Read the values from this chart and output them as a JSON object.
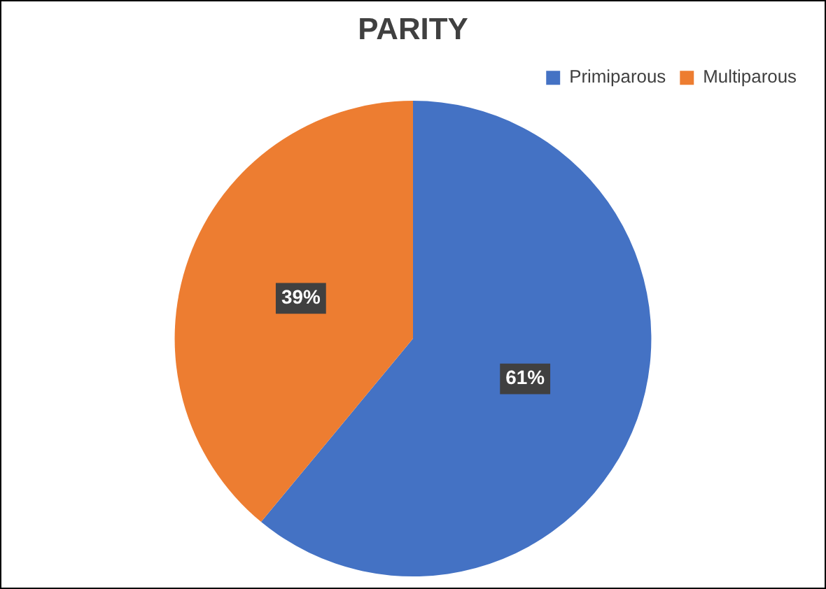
{
  "chart_data": {
    "type": "pie",
    "title": "PARITY",
    "categories": [
      "Primiparous",
      "Multiparous"
    ],
    "values": [
      61,
      39
    ],
    "colors": [
      "#4472c4",
      "#ed7d31"
    ],
    "value_labels": [
      "61%",
      "39%"
    ],
    "legend": "top right"
  }
}
